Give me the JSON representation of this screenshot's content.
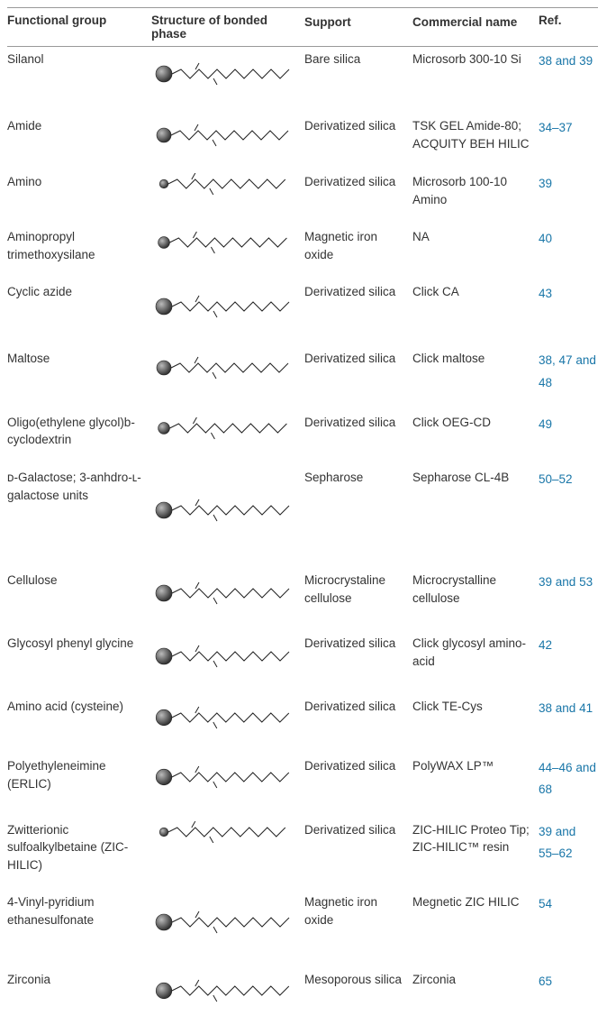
{
  "headers": {
    "fg": "Functional group",
    "str": "Structure of bonded phase",
    "sup": "Support",
    "com": "Commercial name",
    "ref": "Ref."
  },
  "ref_color": "#1976a8",
  "rows": [
    {
      "fg": "Silanol",
      "sup": "Bare silica",
      "com": "Microsorb 300-10 Si",
      "refs": [
        "38",
        "39"
      ],
      "seps": [
        " and "
      ],
      "struct_h": 52
    },
    {
      "fg": "Amide",
      "sup": "Derivatized silica",
      "com": "TSK GEL Amide-80; ACQUITY BEH HILIC",
      "refs": [
        "34",
        "37"
      ],
      "seps": [
        "–"
      ],
      "struct_h": 40
    },
    {
      "fg": "Amino",
      "sup": "Derivatized silica",
      "com": "Microsorb 100-10 Amino",
      "refs": [
        "39"
      ],
      "seps": [],
      "struct_h": 24
    },
    {
      "fg": "Aminopropyl trimethoxysilane",
      "sup": "Magnetic iron oxide",
      "com": "NA",
      "refs": [
        "40"
      ],
      "seps": [],
      "struct_h": 32
    },
    {
      "fg": "Cyclic azide",
      "sup": "Derivatized silica",
      "com": "Click CA",
      "refs": [
        "43"
      ],
      "seps": [],
      "struct_h": 52
    },
    {
      "fg": "Maltose",
      "sup": "Derivatized silica",
      "com": "Click maltose",
      "refs": [
        "38",
        "47",
        "48"
      ],
      "seps": [
        ", ",
        " and "
      ],
      "struct_h": 40
    },
    {
      "fg": "Oligo(ethylene glycol)b-cyclodextrin",
      "sup": "Derivatized silica",
      "com": "Click OEG-CD",
      "refs": [
        "49"
      ],
      "seps": [],
      "struct_h": 32
    },
    {
      "fg": "ᴅ-Galactose; 3-anhdro-ʟ-galactose units",
      "sup": "Sepharose",
      "com": "Sepharose CL-4B",
      "refs": [
        "50",
        "52"
      ],
      "seps": [
        "–"
      ],
      "struct_h": 92
    },
    {
      "fg": "Cellulose",
      "sup": "Microcrystaline cellulose",
      "com": "Microcrystalline cellulose",
      "refs": [
        "39",
        "53"
      ],
      "seps": [
        " and "
      ],
      "struct_h": 48
    },
    {
      "fg": "Glycosyl phenyl glycine",
      "sup": "Derivatized silica",
      "com": "Click glycosyl amino-acid",
      "refs": [
        "42"
      ],
      "seps": [],
      "struct_h": 48
    },
    {
      "fg": "Amino acid (cysteine)",
      "sup": "Derivatized silica",
      "com": "Click TE-Cys",
      "refs": [
        "38",
        "41"
      ],
      "seps": [
        " and "
      ],
      "struct_h": 44
    },
    {
      "fg": "Polyethyleneimine (ERLIC)",
      "sup": "Derivatized silica",
      "com": "PolyWAX LP™",
      "refs": [
        "44",
        "46",
        "68"
      ],
      "seps": [
        "–",
        " and "
      ],
      "struct_h": 44
    },
    {
      "fg": "Zwitterionic sulfoalkylbetaine (ZIC-HILIC)",
      "sup": "Derivatized silica",
      "com": "ZIC-HILIC Proteo Tip; ZIC-HILIC™ resin",
      "refs": [
        "39",
        "55",
        "62"
      ],
      "seps": [
        " and ",
        "–"
      ],
      "struct_h": 24
    },
    {
      "fg": "4-Vinyl-pyridium ethanesulfonate",
      "sup": "Magnetic iron oxide",
      "com": "Megnetic ZIC HILIC",
      "refs": [
        "54"
      ],
      "seps": [],
      "struct_h": 64
    },
    {
      "fg": "Zirconia",
      "sup": "Mesoporous silica",
      "com": "Zirconia",
      "refs": [
        "65"
      ],
      "seps": [],
      "struct_h": 44
    }
  ]
}
